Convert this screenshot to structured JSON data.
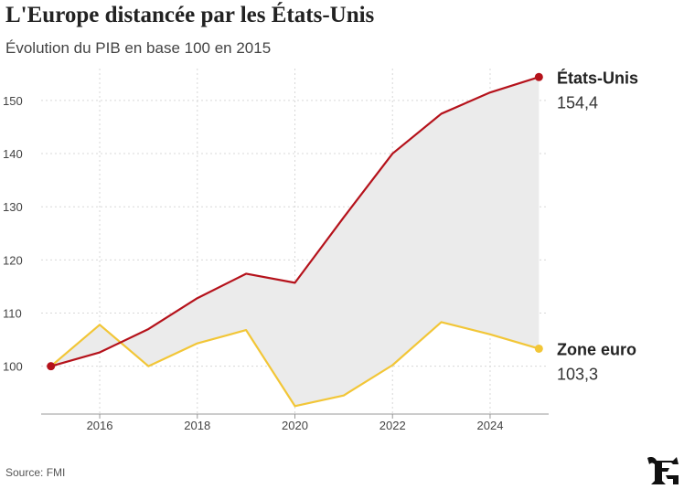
{
  "chart_data": {
    "type": "line",
    "title": "L'Europe distancée par les États-Unis",
    "subtitle": "Évolution du PIB en base 100 en 2015",
    "x": [
      2015,
      2016,
      2017,
      2018,
      2019,
      2020,
      2021,
      2022,
      2023,
      2024,
      2025
    ],
    "xticks": [
      2016,
      2018,
      2020,
      2022,
      2024
    ],
    "yticks": [
      100,
      110,
      120,
      130,
      140,
      150
    ],
    "xlim": [
      2014.8,
      2025.2
    ],
    "ylim": [
      91,
      156
    ],
    "grid": true,
    "shaded_gap": true,
    "series": [
      {
        "name": "États-Unis",
        "end_label": "154,4",
        "color": "#b5121b",
        "values": [
          100,
          102.6,
          107,
          112.8,
          117.4,
          115.7,
          128,
          140,
          147.5,
          151.5,
          154.4
        ]
      },
      {
        "name": "Zone euro",
        "end_label": "103,3",
        "color": "#f2c637",
        "values": [
          100,
          107.8,
          100,
          104.3,
          106.8,
          92.5,
          94.5,
          100.2,
          108.3,
          106,
          103.3
        ]
      }
    ],
    "source": "Source: FMI"
  },
  "colors": {
    "fill": "#ebebeb",
    "grid": "#d8d8d8",
    "axis": "#999999"
  },
  "logo_icon": "le-figaro-logo"
}
